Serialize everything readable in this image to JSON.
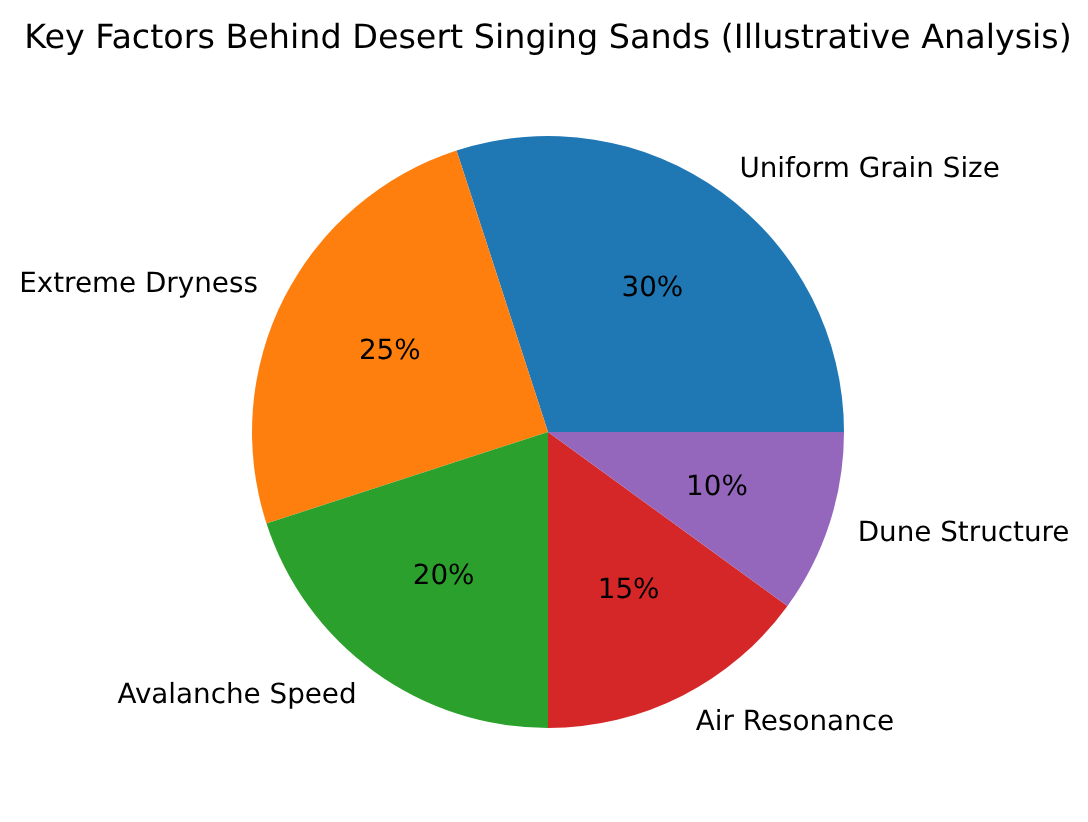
{
  "chart_data": {
    "type": "pie",
    "title": "Key Factors Behind Desert Singing Sands (Illustrative Analysis)",
    "categories": [
      "Uniform Grain Size",
      "Extreme Dryness",
      "Avalanche Speed",
      "Air Resonance",
      "Dune Structure"
    ],
    "values": [
      30,
      25,
      20,
      15,
      10
    ],
    "colors": [
      "#1f77b4",
      "#ff7f0e",
      "#2ca02c",
      "#d62728",
      "#9467bd"
    ],
    "value_labels": [
      "30%",
      "25%",
      "20%",
      "15%",
      "10%"
    ]
  }
}
